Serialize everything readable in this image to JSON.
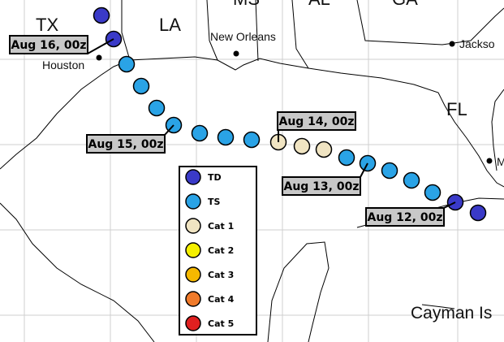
{
  "places": {
    "tx": "TX",
    "la": "LA",
    "ms": "MS",
    "al": "AL",
    "ga": "GA",
    "fl": "FL",
    "new_orleans": "New Orleans",
    "houston": "Houston",
    "jacksonville": "Jackso",
    "cayman": "Cayman Is",
    "m": "M"
  },
  "date_labels": [
    "Aug 16, 00z",
    "Aug 15, 00z",
    "Aug 14, 00z",
    "Aug 13, 00z",
    "Aug 12, 00z"
  ],
  "legend": [
    {
      "label": "TD",
      "color": "#3a3ac8"
    },
    {
      "label": "TS",
      "color": "#2aa3e6"
    },
    {
      "label": "Cat 1",
      "color": "#f0e4c2"
    },
    {
      "label": "Cat 2",
      "color": "#f5f000"
    },
    {
      "label": "Cat 3",
      "color": "#f5b800"
    },
    {
      "label": "Cat 4",
      "color": "#f07a2a"
    },
    {
      "label": "Cat 5",
      "color": "#e02020"
    }
  ]
}
